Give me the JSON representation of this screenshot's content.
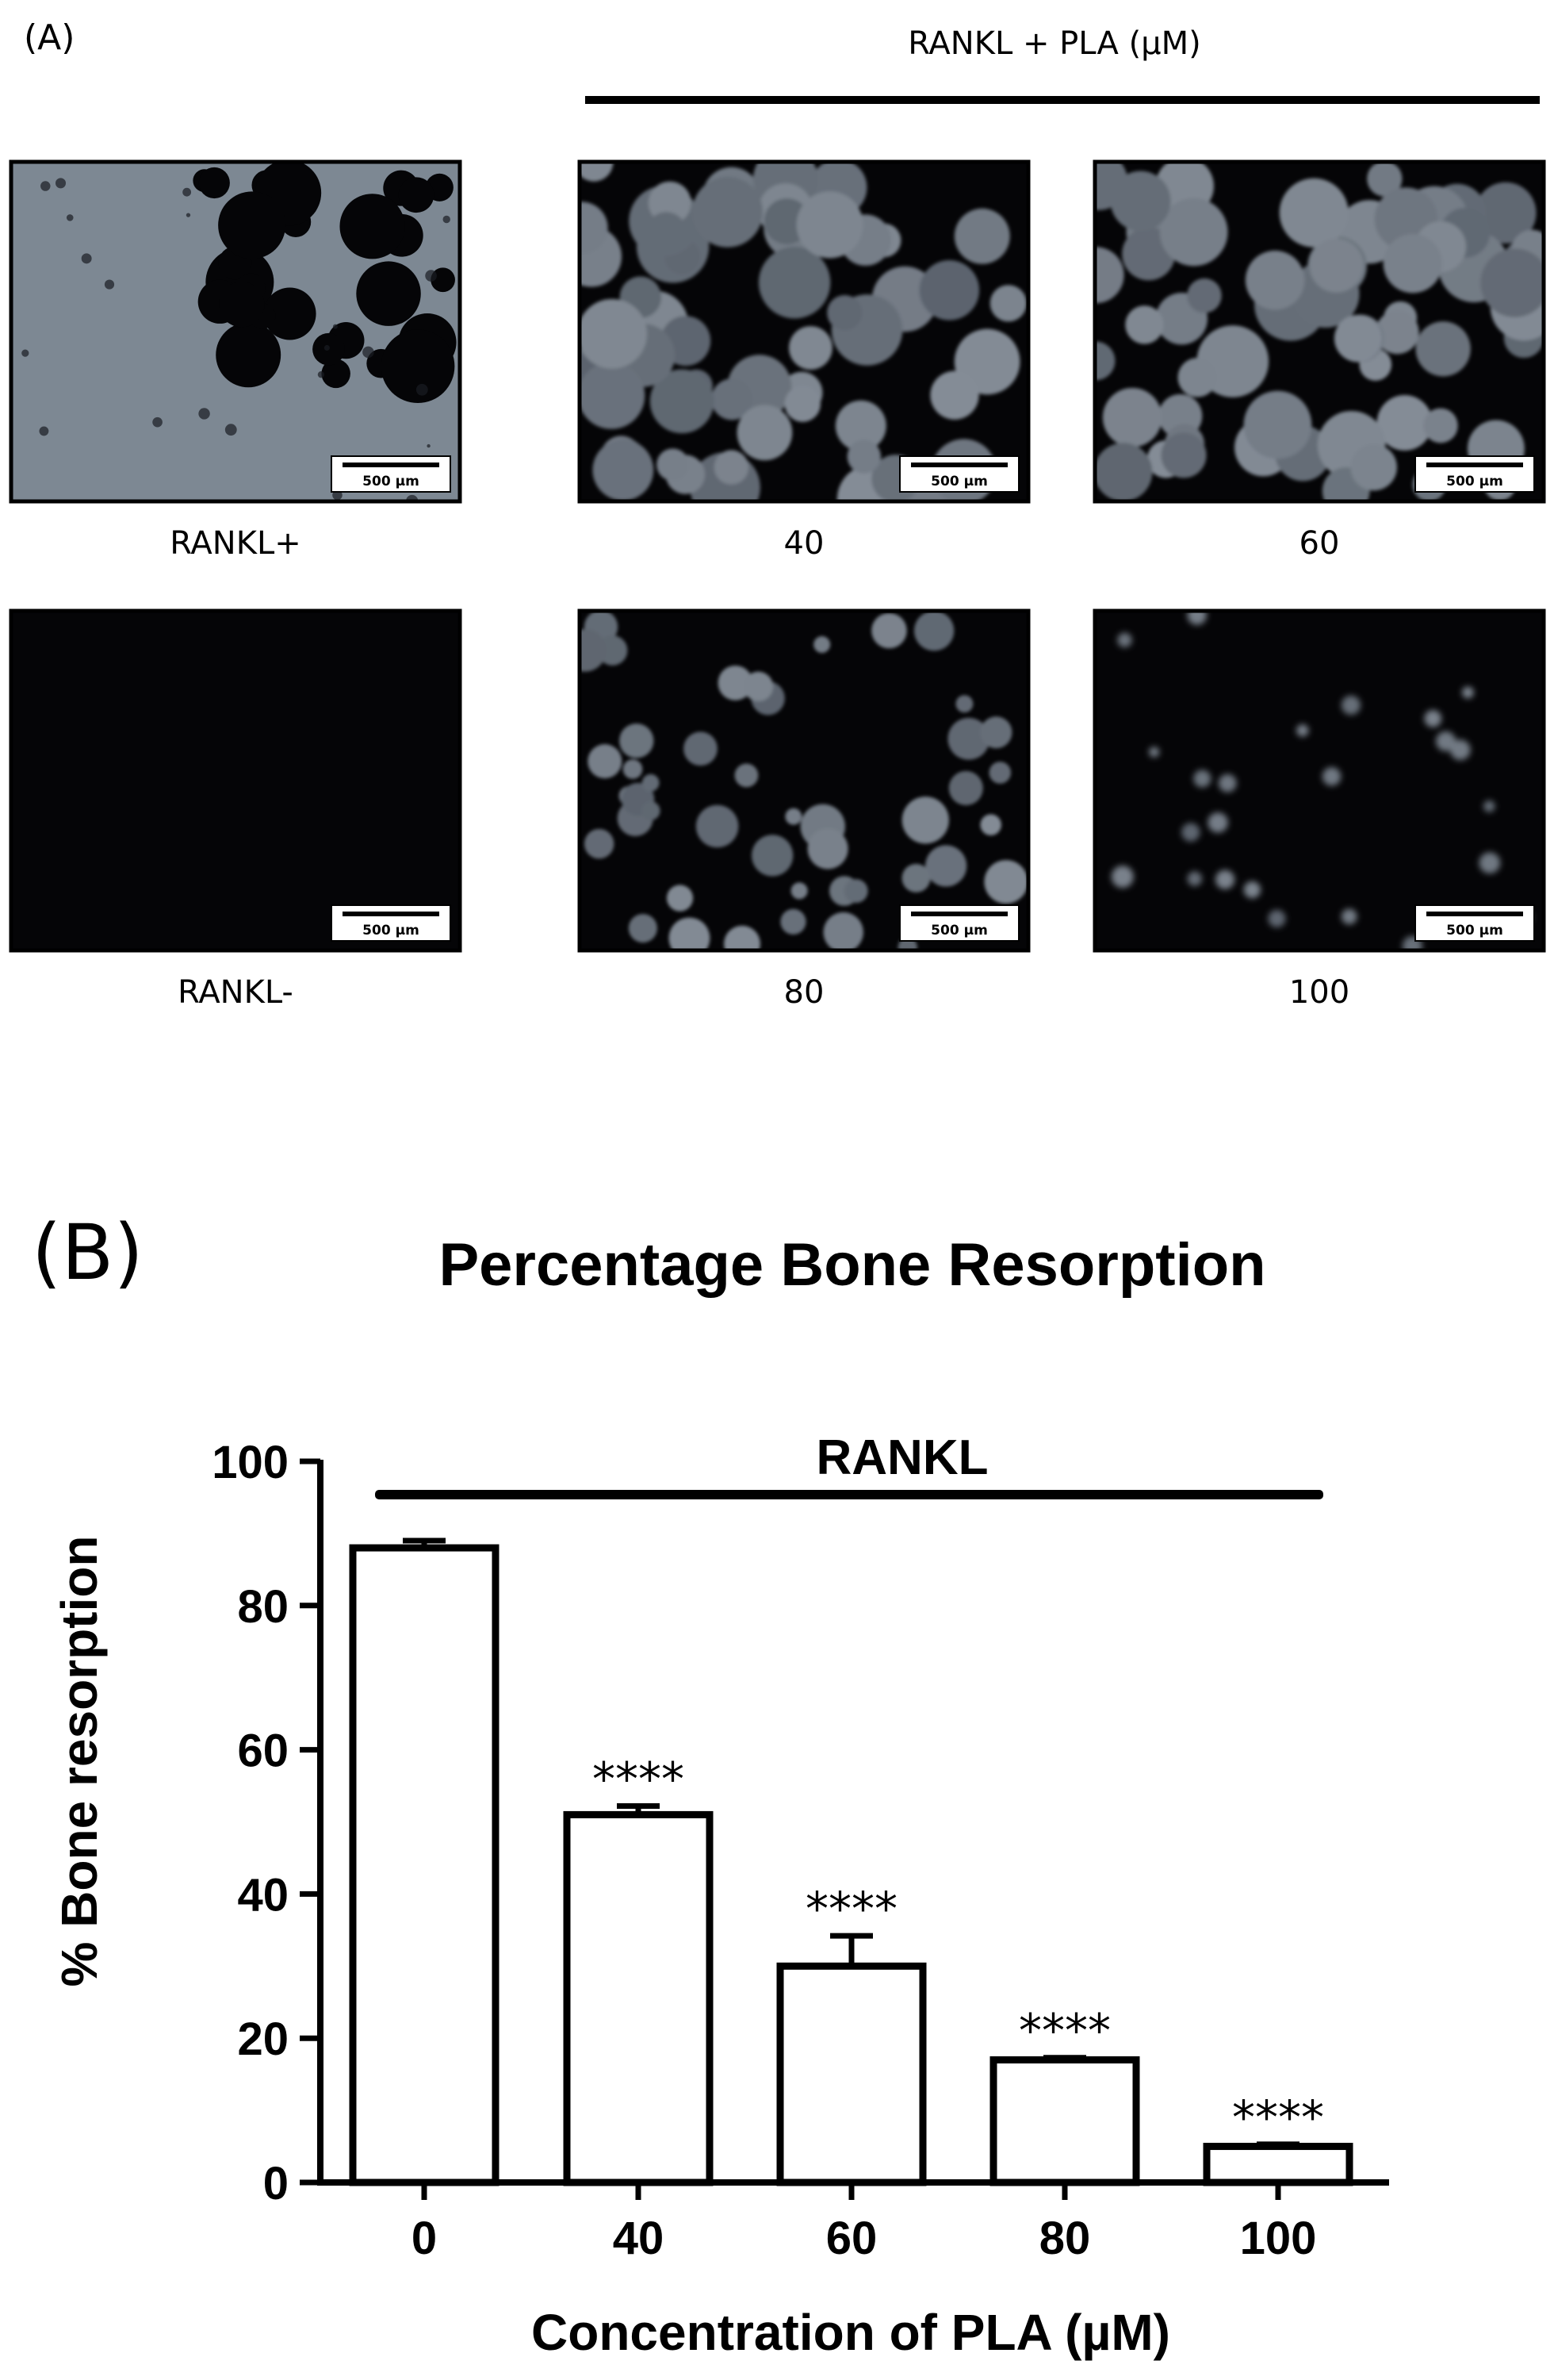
{
  "panel_a": {
    "label": "(A)",
    "header": "RANKL + PLA (µM)",
    "scale_bar": "500 µm",
    "images": [
      {
        "id": "rankl-plus",
        "caption": "RANKL+",
        "resorbed_level": "high"
      },
      {
        "id": "pla-40",
        "caption": "40",
        "resorbed_level": "medium"
      },
      {
        "id": "pla-60",
        "caption": "60",
        "resorbed_level": "medium"
      },
      {
        "id": "rankl-minus",
        "caption": "RANKL-",
        "resorbed_level": "none"
      },
      {
        "id": "pla-80",
        "caption": "80",
        "resorbed_level": "low"
      },
      {
        "id": "pla-100",
        "caption": "100",
        "resorbed_level": "very-low"
      }
    ],
    "colors": {
      "frame": "#000000",
      "surface": "#7d8893",
      "pit": "#050507"
    }
  },
  "panel_b": {
    "label": "(B)"
  },
  "chart_data": {
    "type": "bar",
    "title": "Percentage Bone Resorption",
    "bracket_label": "RANKL",
    "xlabel": "Concentration of PLA (µM)",
    "ylabel": "% Bone resorption",
    "categories": [
      "0",
      "40",
      "60",
      "80",
      "100"
    ],
    "values": [
      88,
      51,
      30,
      17,
      5
    ],
    "errors": [
      1,
      1.2,
      4.2,
      0.3,
      0.3
    ],
    "significance": [
      "",
      "****",
      "****",
      "****",
      "****"
    ],
    "ylim": [
      0,
      100
    ],
    "yticks": [
      0,
      20,
      40,
      60,
      80,
      100
    ],
    "grid": false,
    "colors": {
      "bar_fill": "#ffffff",
      "bar_stroke": "#000000"
    }
  }
}
